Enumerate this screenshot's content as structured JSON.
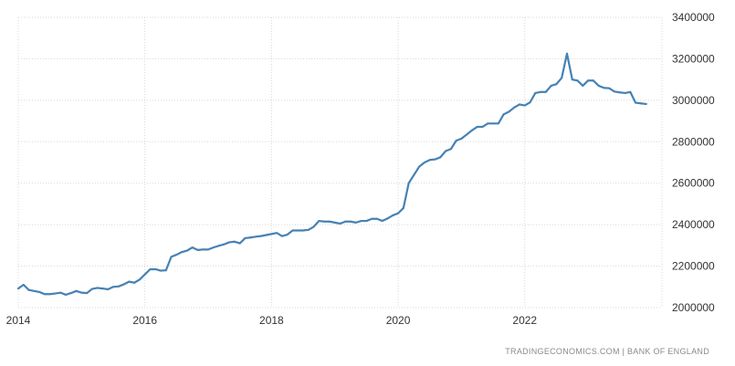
{
  "chart_data": {
    "type": "line",
    "title": "",
    "xlabel": "",
    "ylabel": "",
    "x_ticks": [
      "2014",
      "2016",
      "2018",
      "2020",
      "2022"
    ],
    "y_ticks": [
      "2000000",
      "2200000",
      "2400000",
      "2600000",
      "2800000",
      "3000000",
      "3200000",
      "3400000"
    ],
    "ylim": [
      2000000,
      3400000
    ],
    "xlim": [
      "2014-01",
      "2024-03"
    ],
    "grid": true,
    "line_color": "#4682b4",
    "series": [
      {
        "x": [
          "2014-01",
          "2014-02",
          "2014-03",
          "2014-04",
          "2014-05",
          "2014-06",
          "2014-07",
          "2014-08",
          "2014-09",
          "2014-10",
          "2014-11",
          "2014-12",
          "2015-01",
          "2015-02",
          "2015-03",
          "2015-04",
          "2015-05",
          "2015-06",
          "2015-07",
          "2015-08",
          "2015-09",
          "2015-10",
          "2015-11",
          "2015-12",
          "2016-01",
          "2016-02",
          "2016-03",
          "2016-04",
          "2016-05",
          "2016-06",
          "2016-07",
          "2016-08",
          "2016-09",
          "2016-10",
          "2016-11",
          "2016-12",
          "2017-01",
          "2017-02",
          "2017-03",
          "2017-04",
          "2017-05",
          "2017-06",
          "2017-07",
          "2017-08",
          "2017-09",
          "2017-10",
          "2017-11",
          "2017-12",
          "2018-01",
          "2018-02",
          "2018-03",
          "2018-04",
          "2018-05",
          "2018-06",
          "2018-07",
          "2018-08",
          "2018-09",
          "2018-10",
          "2018-11",
          "2018-12",
          "2019-01",
          "2019-02",
          "2019-03",
          "2019-04",
          "2019-05",
          "2019-06",
          "2019-07",
          "2019-08",
          "2019-09",
          "2019-10",
          "2019-11",
          "2019-12",
          "2020-01",
          "2020-02",
          "2020-03",
          "2020-04",
          "2020-05",
          "2020-06",
          "2020-07",
          "2020-08",
          "2020-09",
          "2020-10",
          "2020-11",
          "2020-12",
          "2021-01",
          "2021-02",
          "2021-03",
          "2021-04",
          "2021-05",
          "2021-06",
          "2021-07",
          "2021-08",
          "2021-09",
          "2021-10",
          "2021-11",
          "2021-12",
          "2022-01",
          "2022-02",
          "2022-03",
          "2022-04",
          "2022-05",
          "2022-06",
          "2022-07",
          "2022-08",
          "2022-09",
          "2022-10",
          "2022-11",
          "2022-12",
          "2023-01",
          "2023-02",
          "2023-03",
          "2023-04",
          "2023-05",
          "2023-06",
          "2023-07",
          "2023-08",
          "2023-09",
          "2023-10",
          "2023-11",
          "2023-12"
        ],
        "values": [
          2092000,
          2110000,
          2085000,
          2080000,
          2075000,
          2065000,
          2065000,
          2068000,
          2072000,
          2062000,
          2070000,
          2080000,
          2072000,
          2070000,
          2090000,
          2095000,
          2092000,
          2088000,
          2100000,
          2102000,
          2112000,
          2125000,
          2120000,
          2135000,
          2160000,
          2185000,
          2185000,
          2178000,
          2180000,
          2245000,
          2255000,
          2268000,
          2275000,
          2290000,
          2278000,
          2280000,
          2280000,
          2290000,
          2298000,
          2305000,
          2315000,
          2318000,
          2310000,
          2335000,
          2338000,
          2342000,
          2345000,
          2350000,
          2355000,
          2360000,
          2345000,
          2352000,
          2372000,
          2372000,
          2372000,
          2375000,
          2390000,
          2418000,
          2415000,
          2415000,
          2410000,
          2405000,
          2415000,
          2415000,
          2410000,
          2418000,
          2418000,
          2428000,
          2428000,
          2418000,
          2430000,
          2445000,
          2455000,
          2480000,
          2600000,
          2640000,
          2680000,
          2700000,
          2712000,
          2715000,
          2725000,
          2755000,
          2765000,
          2805000,
          2815000,
          2835000,
          2855000,
          2872000,
          2872000,
          2888000,
          2888000,
          2888000,
          2932000,
          2945000,
          2965000,
          2980000,
          2975000,
          2990000,
          3035000,
          3040000,
          3040000,
          3070000,
          3078000,
          3108000,
          3225000,
          3100000,
          3095000,
          3070000,
          3095000,
          3095000,
          3070000,
          3060000,
          3058000,
          3042000,
          3038000,
          3035000,
          3040000,
          2988000,
          2985000,
          2982000
        ]
      }
    ]
  },
  "source_label": "TRADINGECONOMICS.COM  |  BANK OF ENGLAND"
}
